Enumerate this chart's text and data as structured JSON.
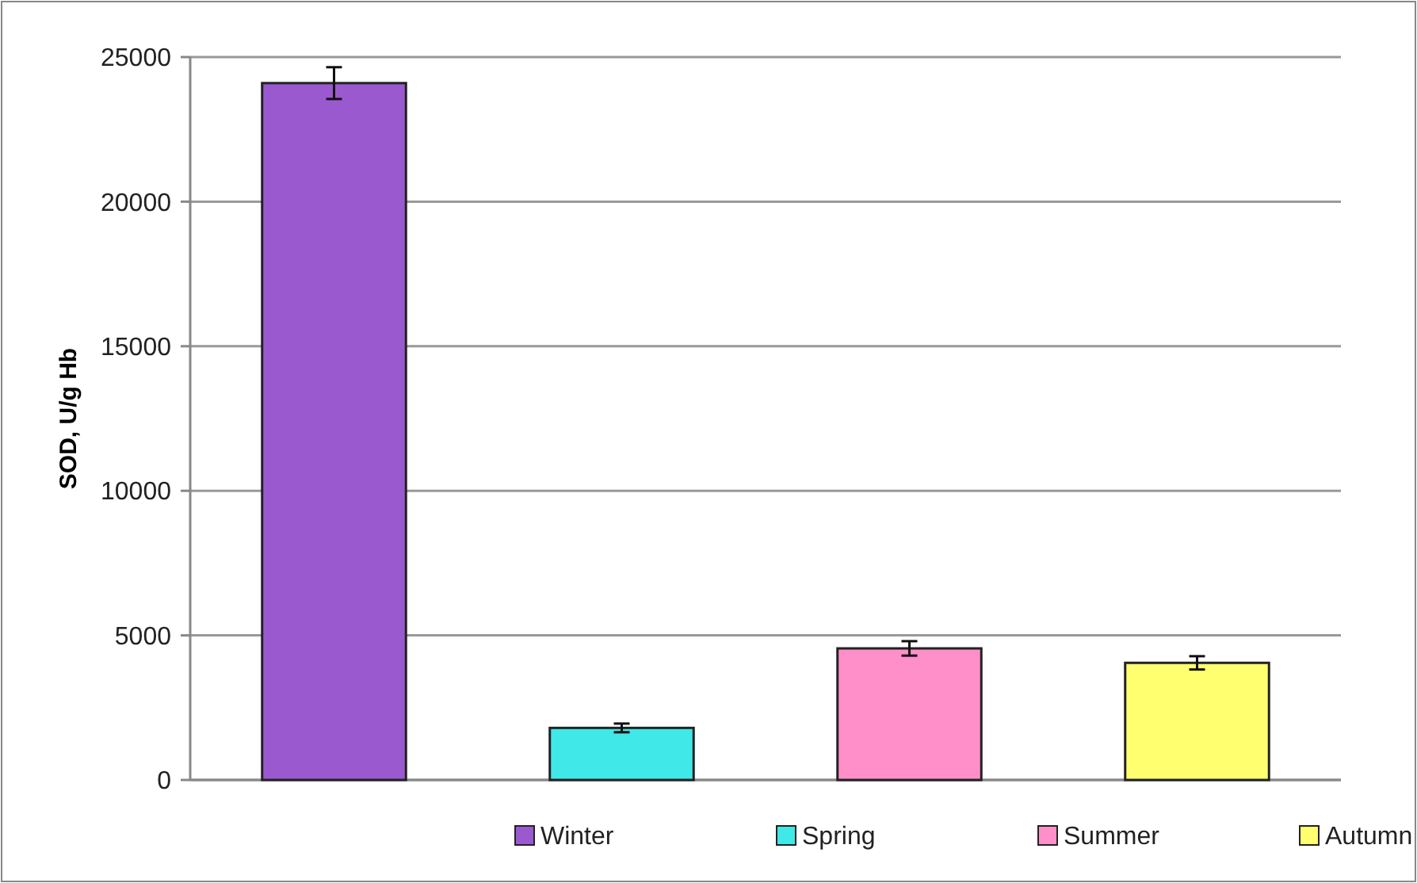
{
  "chart_data": {
    "type": "bar",
    "ylabel": "SOD, U/g Hb",
    "categories": [
      null,
      null,
      null,
      null
    ],
    "series": [
      {
        "name": "Winter",
        "color": "#9b59d0",
        "values": [
          24100,
          null,
          null,
          null
        ],
        "errors": [
          550,
          null,
          null,
          null
        ]
      },
      {
        "name": "Spring",
        "color": "#40e8e8",
        "values": [
          null,
          1800,
          null,
          null
        ],
        "errors": [
          null,
          150,
          null,
          null
        ]
      },
      {
        "name": "Summer",
        "color": "#ff8fc8",
        "values": [
          null,
          null,
          4550,
          null
        ],
        "errors": [
          null,
          null,
          250,
          null
        ]
      },
      {
        "name": "Autumn",
        "color": "#ffff70",
        "values": [
          null,
          null,
          null,
          4050
        ],
        "errors": [
          null,
          null,
          null,
          230
        ]
      }
    ],
    "ylim": [
      0,
      25000
    ],
    "yticks": [
      0,
      5000,
      10000,
      15000,
      20000,
      25000
    ],
    "grid": "y",
    "legend": "bottom"
  }
}
